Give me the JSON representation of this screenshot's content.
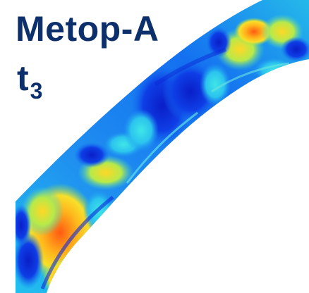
{
  "title": "Metop-A",
  "time_label": {
    "base": "t",
    "subscript": "3"
  },
  "colors": {
    "title": "#0d2f6b",
    "swath_low": "#0a2fd6",
    "swath_mid": "#18b4ea",
    "swath_high": "#ffd21a",
    "swath_max": "#f25a14",
    "background": "#ffffff"
  }
}
